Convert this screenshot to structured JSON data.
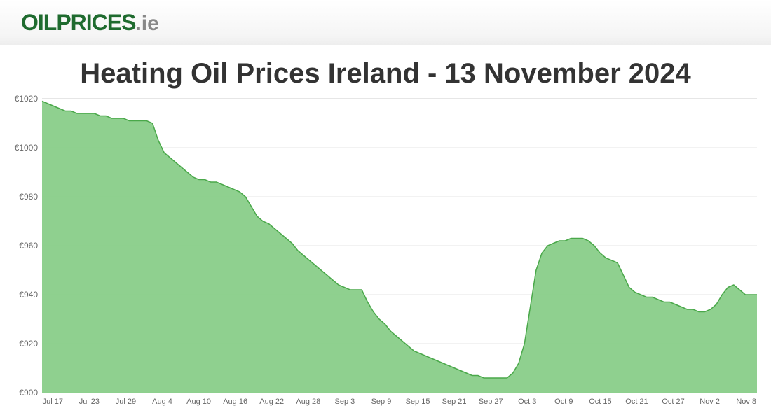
{
  "header": {
    "logo_word1": "OILPRICES",
    "logo_word2": ".ie"
  },
  "chart": {
    "title": "Heating Oil Prices Ireland - 13 November 2024",
    "type": "area",
    "title_fontsize": 40,
    "title_color": "#333333",
    "background_color": "#ffffff",
    "grid_color": "#e6e6e6",
    "area_fill_color": "#89cd89",
    "line_stroke_color": "#4aa84a",
    "axis_label_color": "#666666",
    "axis_label_fontsize": 12,
    "currency_symbol": "€",
    "ylim": [
      900,
      1020
    ],
    "ytick_step": 20,
    "yticks": [
      900,
      920,
      940,
      960,
      980,
      1000,
      1020
    ],
    "xticks": [
      "Jul 17",
      "Jul 23",
      "Jul 29",
      "Aug 4",
      "Aug 10",
      "Aug 16",
      "Aug 22",
      "Aug 28",
      "Sep 3",
      "Sep 9",
      "Sep 15",
      "Sep 21",
      "Sep 27",
      "Oct 3",
      "Oct 9",
      "Oct 15",
      "Oct 21",
      "Oct 27",
      "Nov 2",
      "Nov 8"
    ],
    "series": [
      1019,
      1018,
      1017,
      1016,
      1015,
      1015,
      1014,
      1014,
      1014,
      1014,
      1013,
      1013,
      1012,
      1012,
      1012,
      1011,
      1011,
      1011,
      1011,
      1010,
      1003,
      998,
      996,
      994,
      992,
      990,
      988,
      987,
      987,
      986,
      986,
      985,
      984,
      983,
      982,
      980,
      976,
      972,
      970,
      969,
      967,
      965,
      963,
      961,
      958,
      956,
      954,
      952,
      950,
      948,
      946,
      944,
      943,
      942,
      942,
      942,
      937,
      933,
      930,
      928,
      925,
      923,
      921,
      919,
      917,
      916,
      915,
      914,
      913,
      912,
      911,
      910,
      909,
      908,
      907,
      907,
      906,
      906,
      906,
      906,
      906,
      908,
      912,
      920,
      935,
      950,
      957,
      960,
      961,
      962,
      962,
      963,
      963,
      963,
      962,
      960,
      957,
      955,
      954,
      953,
      948,
      943,
      941,
      940,
      939,
      939,
      938,
      937,
      937,
      936,
      935,
      934,
      934,
      933,
      933,
      934,
      936,
      940,
      943,
      944,
      942,
      940,
      940,
      940
    ]
  }
}
